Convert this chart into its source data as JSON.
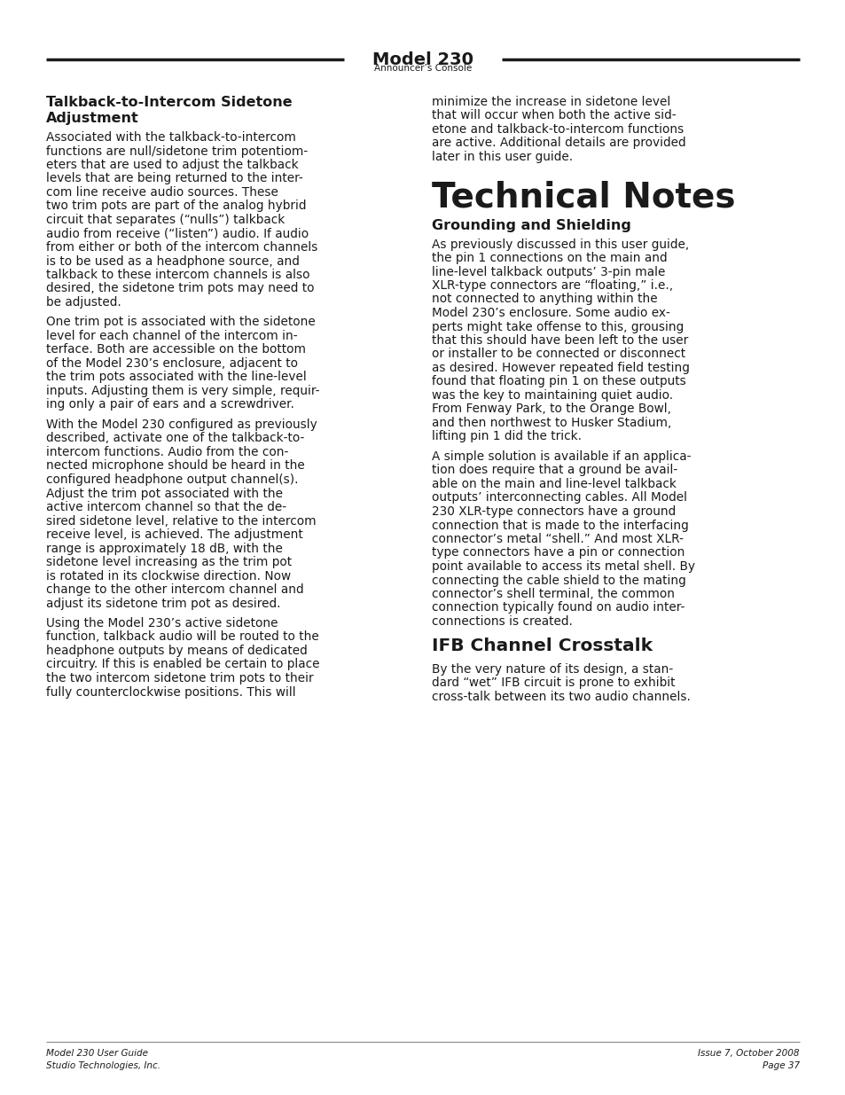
{
  "bg_color": "#ffffff",
  "text_color": "#1a1a1a",
  "header_title": "Model 230",
  "header_subtitle": "Announcer’s Console",
  "footer_left_line1": "Model 230 User Guide",
  "footer_left_line2": "Studio Technologies, Inc.",
  "footer_right_line1": "Issue 7, October 2008",
  "footer_right_line2": "Page 37",
  "left_heading1": "Talkback-to-Intercom Sidetone",
  "left_heading2": "Adjustment",
  "left_para1_lines": [
    "Associated with the talkback-to-intercom",
    "functions are null/sidetone trim potentiom-",
    "eters that are used to adjust the talkback",
    "levels that are being returned to the inter-",
    "com line receive audio sources. These",
    "two trim pots are part of the analog hybrid",
    "circuit that separates (“nulls”) talkback",
    "audio from receive (“listen”) audio. If audio",
    "from either or both of the intercom channels",
    "is to be used as a headphone source, and",
    "talkback to these intercom channels is also",
    "desired, the sidetone trim pots may need to",
    "be adjusted."
  ],
  "left_para2_lines": [
    "One trim pot is associated with the sidetone",
    "level for each channel of the intercom in-",
    "terface. Both are accessible on the bottom",
    "of the Model 230’s enclosure, adjacent to",
    "the trim pots associated with the line-level",
    "inputs. Adjusting them is very simple, requir-",
    "ing only a pair of ears and a screwdriver."
  ],
  "left_para3_lines": [
    "With the Model 230 configured as previously",
    "described, activate one of the talkback-to-",
    "intercom functions. Audio from the con-",
    "nected microphone should be heard in the",
    "configured headphone output channel(s).",
    "Adjust the trim pot associated with the",
    "active intercom channel so that the de-",
    "sired sidetone level, relative to the intercom",
    "receive level, is achieved. The adjustment",
    "range is approximately 18 dB, with the",
    "sidetone level increasing as the trim pot",
    "is rotated in its clockwise direction. Now",
    "change to the other intercom channel and",
    "adjust its sidetone trim pot as desired."
  ],
  "left_para4_lines": [
    "Using the Model 230’s active sidetone",
    "function, talkback audio will be routed to the",
    "headphone outputs by means of dedicated",
    "circuitry. If this is enabled be certain to place",
    "the two intercom sidetone trim pots to their",
    "fully counterclockwise positions. This will"
  ],
  "right_intro_lines": [
    "minimize the increase in sidetone level",
    "that will occur when both the active sid-",
    "etone and talkback-to-intercom functions",
    "are active. Additional details are provided",
    "later in this user guide."
  ],
  "right_big_heading": "Technical Notes",
  "right_heading1": "Grounding and Shielding",
  "right_para1_lines": [
    "As previously discussed in this user guide,",
    "the pin 1 connections on the main and",
    "line-level talkback outputs’ 3-pin male",
    "XLR-type connectors are “floating,” i.e.,",
    "not connected to anything within the",
    "Model 230’s enclosure. Some audio ex-",
    "perts might take offense to this, grousing",
    "that this should have been left to the user",
    "or installer to be connected or disconnect",
    "as desired. However repeated field testing",
    "found that floating pin 1 on these outputs",
    "was the key to maintaining quiet audio.",
    "From Fenway Park, to the Orange Bowl,",
    "and then northwest to Husker Stadium,",
    "lifting pin 1 did the trick."
  ],
  "right_para2_lines": [
    "A simple solution is available if an applica-",
    "tion does require that a ground be avail-",
    "able on the main and line-level talkback",
    "outputs’ interconnecting cables. All Model",
    "230 XLR-type connectors have a ground",
    "connection that is made to the interfacing",
    "connector’s metal “shell.” And most XLR-",
    "type connectors have a pin or connection",
    "point available to access its metal shell. By",
    "connecting the cable shield to the mating",
    "connector’s shell terminal, the common",
    "connection typically found on audio inter-",
    "connections is created."
  ],
  "right_heading2": "IFB Channel Crosstalk",
  "right_para3_lines": [
    "By the very nature of its design, a stan-",
    "dard “wet” IFB circuit is prone to exhibit",
    "cross-talk between its two audio channels."
  ]
}
